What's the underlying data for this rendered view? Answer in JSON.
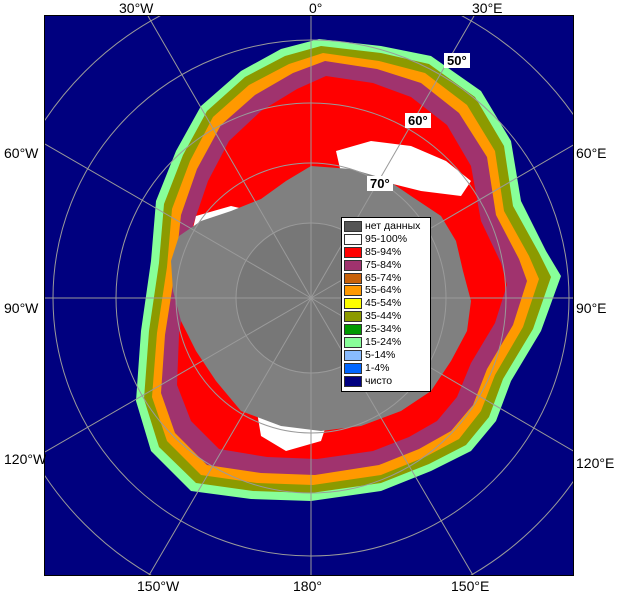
{
  "longitude_labels": {
    "top": [
      "30°W",
      "0°",
      "30°E"
    ],
    "bottom": [
      "150°W",
      "180°",
      "150°E"
    ],
    "left": [
      "60°W",
      "90°W",
      "120°W"
    ],
    "right": [
      "60°E",
      "90°E",
      "120°E"
    ]
  },
  "latitude_labels": [
    "50°",
    "60°",
    "70°"
  ],
  "legend": [
    {
      "label": "нет данных",
      "color": "#555555"
    },
    {
      "label": "95-100%",
      "color": "#ffffff"
    },
    {
      "label": "85-94%",
      "color": "#ff0000"
    },
    {
      "label": "75-84%",
      "color": "#a0336e"
    },
    {
      "label": "65-74%",
      "color": "#c8620a"
    },
    {
      "label": "55-64%",
      "color": "#ff9900"
    },
    {
      "label": "45-54%",
      "color": "#ffff00"
    },
    {
      "label": "35-44%",
      "color": "#8c9a00"
    },
    {
      "label": "25-34%",
      "color": "#009900"
    },
    {
      "label": "15-24%",
      "color": "#88ff99"
    },
    {
      "label": "5-14%",
      "color": "#88bbff"
    },
    {
      "label": "1-4%",
      "color": "#0066ff"
    },
    {
      "label": "чисто",
      "color": "#000080"
    }
  ],
  "colors": {
    "ocean": "#00007f",
    "land": "#808080",
    "pole": "#777777",
    "graticule": "#9a9a9a"
  }
}
